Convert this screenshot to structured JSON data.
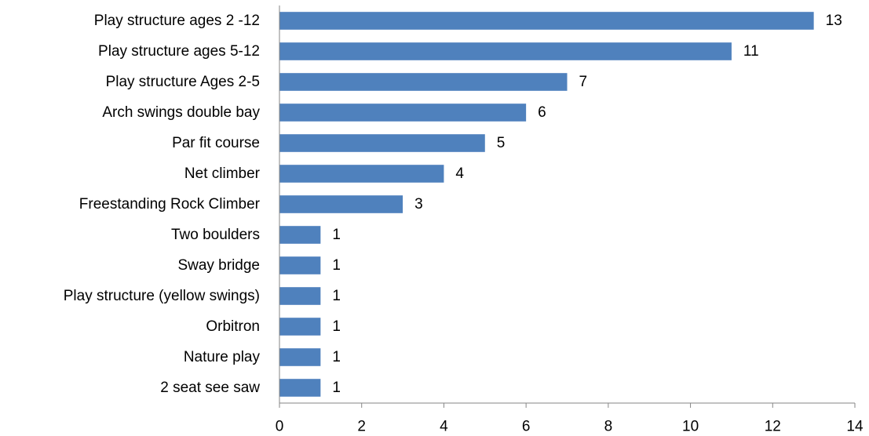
{
  "chart_data": {
    "type": "bar",
    "orientation": "horizontal",
    "title": "",
    "xlabel": "",
    "ylabel": "",
    "categories": [
      "Play structure ages 2 -12",
      "Play structure ages 5-12",
      "Play structure Ages 2-5",
      "Arch swings double bay",
      "Par fit course",
      "Net climber",
      "Freestanding Rock Climber",
      "Two boulders",
      "Sway bridge",
      "Play structure (yellow swings)",
      "Orbitron",
      "Nature play",
      "2 seat see saw"
    ],
    "values": [
      13,
      11,
      7,
      6,
      5,
      4,
      3,
      1,
      1,
      1,
      1,
      1,
      1
    ],
    "xlim": [
      0,
      14
    ],
    "x_ticks": [
      0,
      2,
      4,
      6,
      8,
      10,
      12,
      14
    ],
    "grid": false,
    "legend": "none",
    "data_labels": true,
    "bar_color": "#4F81BD"
  }
}
